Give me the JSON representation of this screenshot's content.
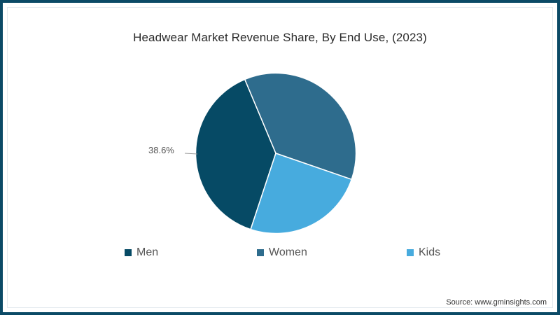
{
  "title": "Headwear Market Revenue Share, By End Use, (2023)",
  "source": "Source: www.gminsights.com",
  "colors": {
    "frame": "#0b4a66",
    "men": "#064a65",
    "women": "#2e6c8d",
    "kids": "#47abde"
  },
  "legend": [
    {
      "label": "Men",
      "color": "#064a65"
    },
    {
      "label": "Women",
      "color": "#2e6c8d"
    },
    {
      "label": "Kids",
      "color": "#47abde"
    }
  ],
  "data_labels": {
    "men": "38.6%"
  },
  "chart_data": {
    "type": "pie",
    "title": "Headwear Market Revenue Share, By End Use, (2023)",
    "categories": [
      "Men",
      "Women",
      "Kids"
    ],
    "values": [
      38.6,
      36.6,
      24.8
    ],
    "labeled_values": {
      "Men": "38.6%"
    },
    "legend_position": "bottom",
    "source": "Source: www.gminsights.com"
  }
}
